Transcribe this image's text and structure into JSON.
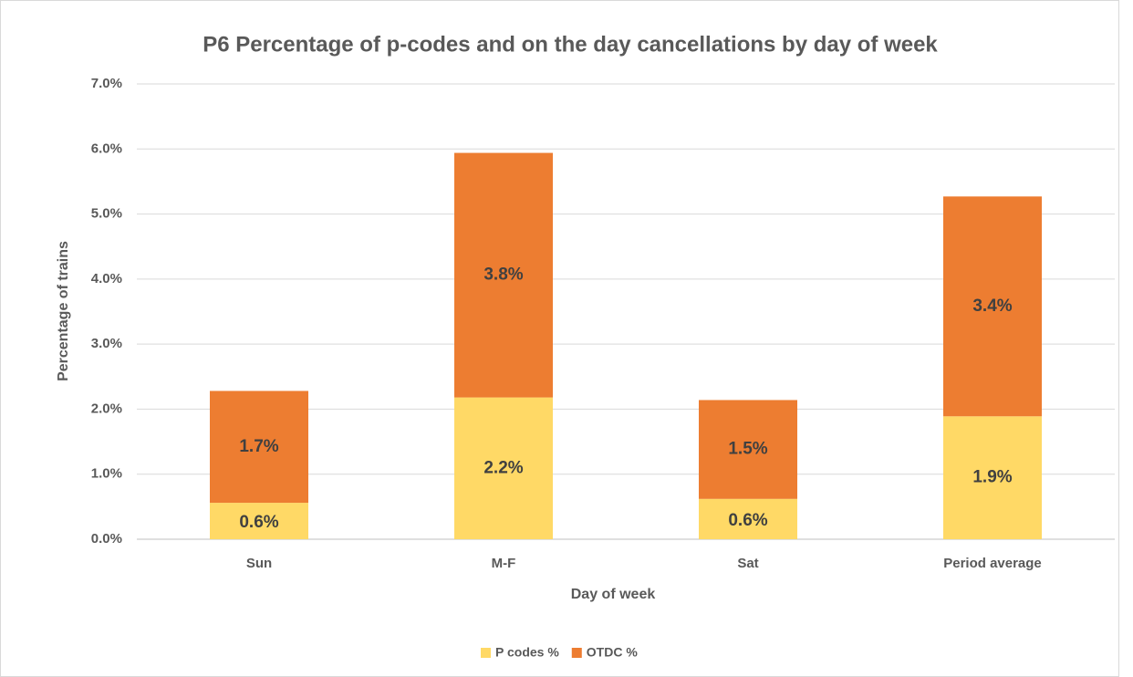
{
  "chart_data": {
    "type": "stacked_bar",
    "title": "P6 Percentage of p-codes and on the day cancellations by day of week",
    "x_label": "Day of week",
    "y_label": "Percentage of trains",
    "categories": [
      "Sun",
      "M-F",
      "Sat",
      "Period average"
    ],
    "series": [
      {
        "name": "P codes %",
        "color": "#ffd966",
        "values": [
          0.56,
          2.18,
          0.62,
          1.89
        ],
        "value_labels": [
          "0.6%",
          "2.2%",
          "0.6%",
          "1.9%"
        ]
      },
      {
        "name": "OTDC %",
        "color": "#ed7d31",
        "values": [
          1.72,
          3.76,
          1.52,
          3.38
        ],
        "value_labels": [
          "1.7%",
          "3.8%",
          "1.5%",
          "3.4%"
        ]
      }
    ],
    "ylim": [
      0,
      7
    ],
    "yticks": [
      {
        "value": 0,
        "label": "0.0%"
      },
      {
        "value": 1,
        "label": "1.0%"
      },
      {
        "value": 2,
        "label": "2.0%"
      },
      {
        "value": 3,
        "label": "3.0%"
      },
      {
        "value": 4,
        "label": "4.0%"
      },
      {
        "value": 5,
        "label": "5.0%"
      },
      {
        "value": 6,
        "label": "6.0%"
      },
      {
        "value": 7,
        "label": "7.0%"
      }
    ],
    "grid": true,
    "legend": "bottom"
  }
}
